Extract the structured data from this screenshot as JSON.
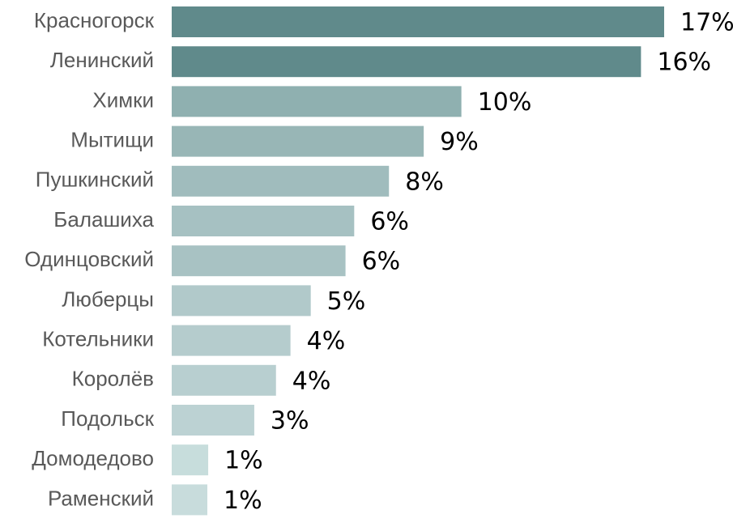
{
  "chart_data": {
    "type": "barh",
    "categories": [
      "Красногорск",
      "Ленинский",
      "Химки",
      "Мытищи",
      "Пушкинский",
      "Балашиха",
      "Одинцовский",
      "Люберцы",
      "Котельники",
      "Королёв",
      "Подольск",
      "Домодедово",
      "Раменский"
    ],
    "values": [
      17,
      16.2,
      10,
      8.7,
      7.5,
      6.3,
      6.0,
      4.8,
      4.1,
      3.6,
      2.85,
      1.26,
      1.23
    ],
    "value_labels": [
      "17%",
      "16%",
      "10%",
      "9%",
      "8%",
      "6%",
      "6%",
      "5%",
      "4%",
      "4%",
      "3%",
      "1%",
      "1%"
    ],
    "colors": [
      "#608a8b",
      "#608a8b",
      "#8fb0b0",
      "#98b6b6",
      "#a0bcbd",
      "#a6c1c2",
      "#a8c2c3",
      "#b1c9ca",
      "#b5cccd",
      "#b8cfd0",
      "#bcd2d3",
      "#c7dddc",
      "#c8dcdc"
    ]
  }
}
